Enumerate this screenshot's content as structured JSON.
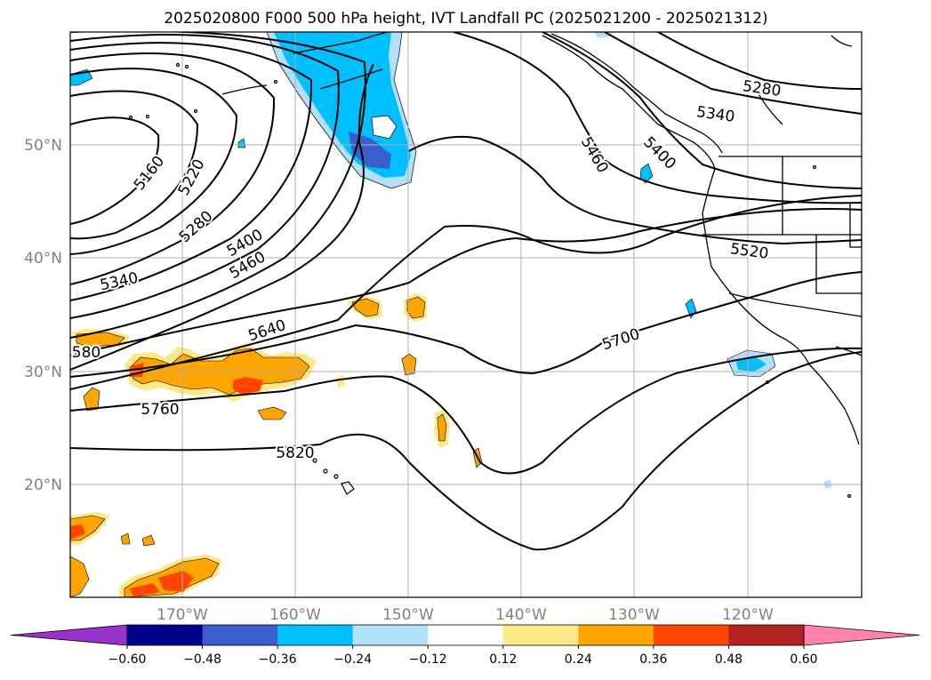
{
  "title": "2025020800 F000 500 hPa height, IVT Landfall PC (2025021200 - 2025021312)",
  "map": {
    "lon_ticks": [
      "170°W",
      "160°W",
      "150°W",
      "140°W",
      "130°W",
      "120°W"
    ],
    "lat_ticks": [
      "50°N",
      "40°N",
      "30°N",
      "20°N"
    ],
    "contour_labels": [
      "5160",
      "5220",
      "5280",
      "5340",
      "5400",
      "5460",
      "580",
      "5640",
      "5700",
      "5760",
      "5820",
      "5280",
      "5340",
      "5400",
      "5460",
      "5520"
    ],
    "colors": {
      "land_line": "#000000",
      "gridline": "#b0b0b0",
      "contour": "#000000"
    }
  },
  "colorbar": {
    "ticks": [
      "−0.60",
      "−0.48",
      "−0.36",
      "−0.24",
      "−0.12",
      "0.12",
      "0.24",
      "0.36",
      "0.48",
      "0.60"
    ],
    "colors": [
      "#9932cc",
      "#00008b",
      "#3a5fcd",
      "#00bfff",
      "#b0e0fa",
      "#ffffff",
      "#ffe88a",
      "#ffa500",
      "#ff4500",
      "#b22222",
      "#ff82ab"
    ]
  }
}
